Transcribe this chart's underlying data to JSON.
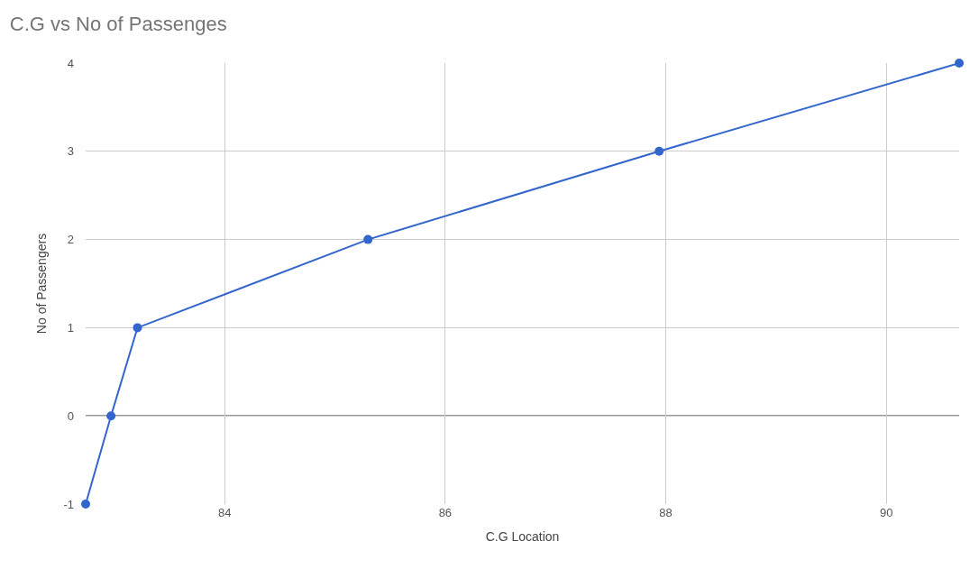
{
  "chart_data": {
    "type": "line",
    "title": "C.G vs No of Passenges",
    "xlabel": "C.G Location",
    "ylabel": "No of Passengers",
    "x": [
      82.74,
      82.97,
      83.21,
      85.3,
      87.94,
      90.66
    ],
    "series": [
      {
        "color": "#3366cc",
        "values": [
          -1,
          0,
          1,
          2,
          3,
          4
        ]
      }
    ],
    "xlim": [
      82.74,
      90.66
    ],
    "xticks": [
      84,
      86,
      88,
      90
    ],
    "ylim": [
      -1,
      4
    ],
    "yticks": [
      -1,
      0,
      1,
      2,
      3,
      4
    ],
    "ref_lines": [
      {
        "axis": "y",
        "value": 0,
        "color": "#333333"
      }
    ],
    "grid": true,
    "marker": "circle",
    "line_style": "solid"
  }
}
